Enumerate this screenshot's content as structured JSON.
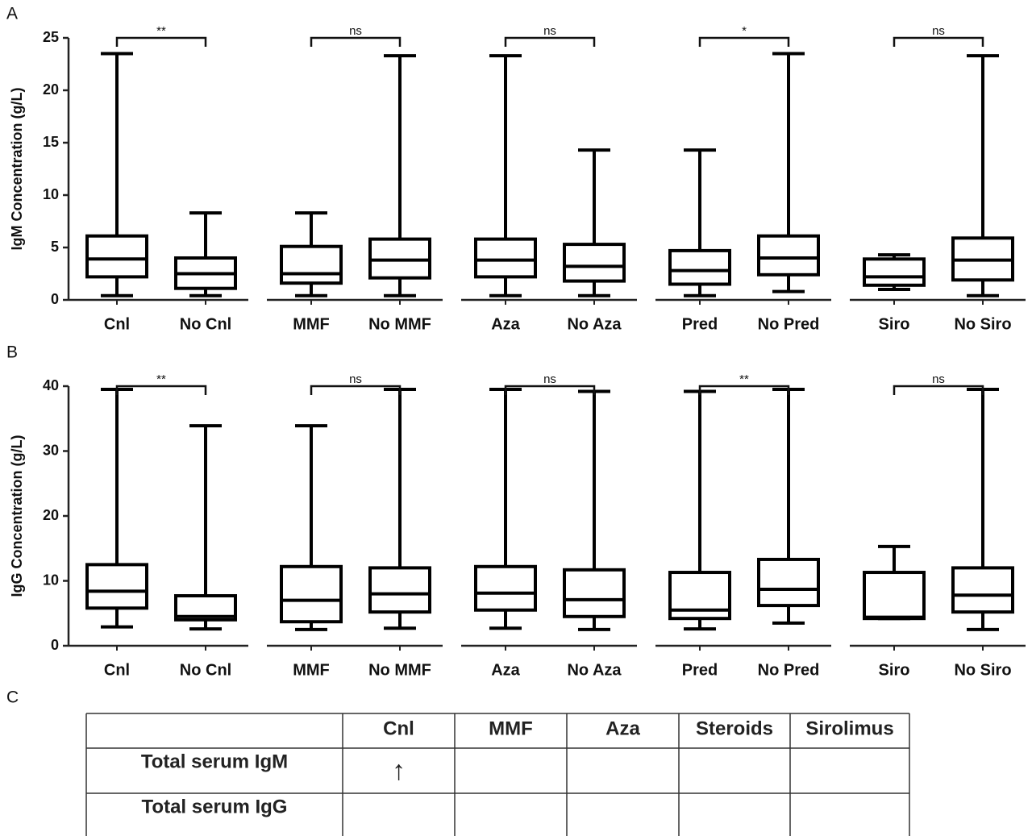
{
  "chart_data": [
    {
      "type": "box",
      "panel_label": "A",
      "ylabel": "IgM Concentration (g/L)",
      "categories": [
        "Cnl",
        "No Cnl",
        "MMF",
        "No MMF",
        "Aza",
        "No Aza",
        "Pred",
        "No Pred",
        "Siro",
        "No Siro"
      ],
      "min": [
        0.4,
        0.4,
        0.4,
        0.4,
        0.4,
        0.4,
        0.4,
        0.8,
        1.0,
        0.4
      ],
      "q1": [
        2.2,
        1.1,
        1.6,
        2.1,
        2.2,
        1.8,
        1.5,
        2.4,
        1.4,
        1.9
      ],
      "median": [
        3.9,
        2.5,
        2.5,
        3.8,
        3.8,
        3.2,
        2.8,
        4.0,
        2.2,
        3.8
      ],
      "q3": [
        6.1,
        4.0,
        5.1,
        5.8,
        5.8,
        5.3,
        4.7,
        6.1,
        3.9,
        5.9
      ],
      "max": [
        23.5,
        8.3,
        8.3,
        23.3,
        23.3,
        14.3,
        14.3,
        23.5,
        4.3,
        23.3
      ],
      "comparisons": [
        "**",
        "ns",
        "ns",
        "*",
        "ns"
      ],
      "color": "#000000",
      "ylim": [
        0,
        25
      ],
      "yticks": [
        0,
        5,
        10,
        15,
        20,
        25
      ]
    },
    {
      "type": "box",
      "panel_label": "B",
      "ylabel": "IgG Concentration (g/L)",
      "categories": [
        "Cnl",
        "No Cnl",
        "MMF",
        "No MMF",
        "Aza",
        "No Aza",
        "Pred",
        "No Pred",
        "Siro",
        "No Siro"
      ],
      "min": [
        2.9,
        2.6,
        2.5,
        2.7,
        2.7,
        2.5,
        2.6,
        3.5,
        4.2,
        2.5
      ],
      "q1": [
        5.8,
        4.0,
        3.7,
        5.2,
        5.5,
        4.5,
        4.2,
        6.2,
        4.2,
        5.2
      ],
      "median": [
        8.4,
        4.5,
        7.0,
        8.0,
        8.1,
        7.1,
        5.5,
        8.7,
        4.4,
        7.8
      ],
      "q3": [
        12.5,
        7.7,
        12.2,
        12.0,
        12.2,
        11.7,
        11.3,
        13.3,
        11.3,
        12.0
      ],
      "max": [
        39.5,
        33.9,
        33.9,
        39.5,
        39.5,
        39.2,
        39.2,
        39.5,
        15.3,
        39.5
      ],
      "comparisons": [
        "**",
        "ns",
        "ns",
        "**",
        "ns"
      ],
      "color": "#000000",
      "ylim": [
        0,
        40
      ],
      "yticks": [
        0,
        10,
        20,
        30,
        40
      ]
    }
  ],
  "table": {
    "panel_label": "C",
    "columns": [
      "Cnl",
      "MMF",
      "Aza",
      "Steroids",
      "Sirolimus"
    ],
    "rows": [
      {
        "label": "Total serum IgM",
        "marks": {
          "Cnl": "↑"
        }
      },
      {
        "label": "Total serum IgG",
        "marks": {}
      }
    ]
  }
}
